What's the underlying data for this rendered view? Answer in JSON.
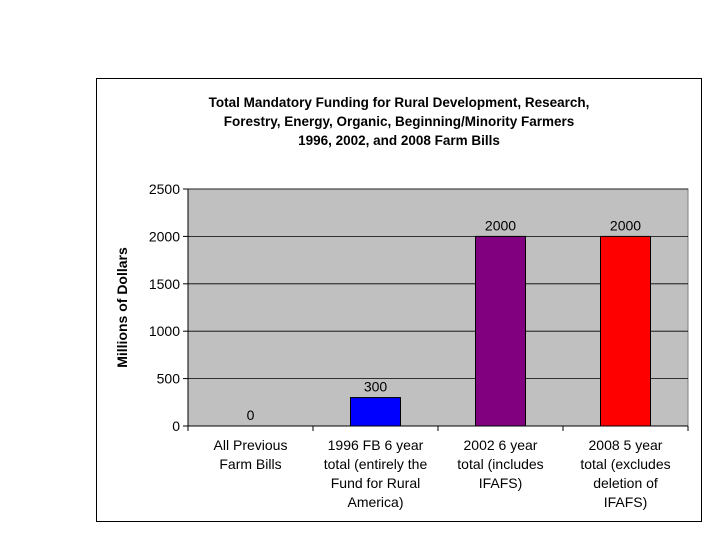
{
  "chart_data": {
    "type": "bar",
    "title_lines": [
      "Total Mandatory Funding for Rural Development, Research,",
      "Forestry, Energy, Organic, Beginning/Minority Farmers",
      "1996, 2002, and 2008 Farm Bills"
    ],
    "ylabel": "Millions of Dollars",
    "xlabel": "",
    "ylim": [
      0,
      2500
    ],
    "yticks": [
      "0",
      "500",
      "1000",
      "1500",
      "2000",
      "2500"
    ],
    "grid": true,
    "legend": "none",
    "categories": [
      [
        "All Previous",
        "Farm Bills"
      ],
      [
        "1996 FB 6 year",
        "total (entirely the",
        "Fund for Rural",
        "America)"
      ],
      [
        "2002 6 year",
        "total (includes",
        "IFAFS)"
      ],
      [
        "2008 5 year",
        "total (excludes",
        "deletion of",
        "IFAFS)"
      ]
    ],
    "values": [
      0,
      300,
      2000,
      2000
    ],
    "data_labels": [
      "0",
      "300",
      "2000",
      "2000"
    ],
    "colors": [
      "#0000ff",
      "#0000ff",
      "#800080",
      "#ff0000"
    ],
    "plot_background": "#c0c0c0"
  }
}
